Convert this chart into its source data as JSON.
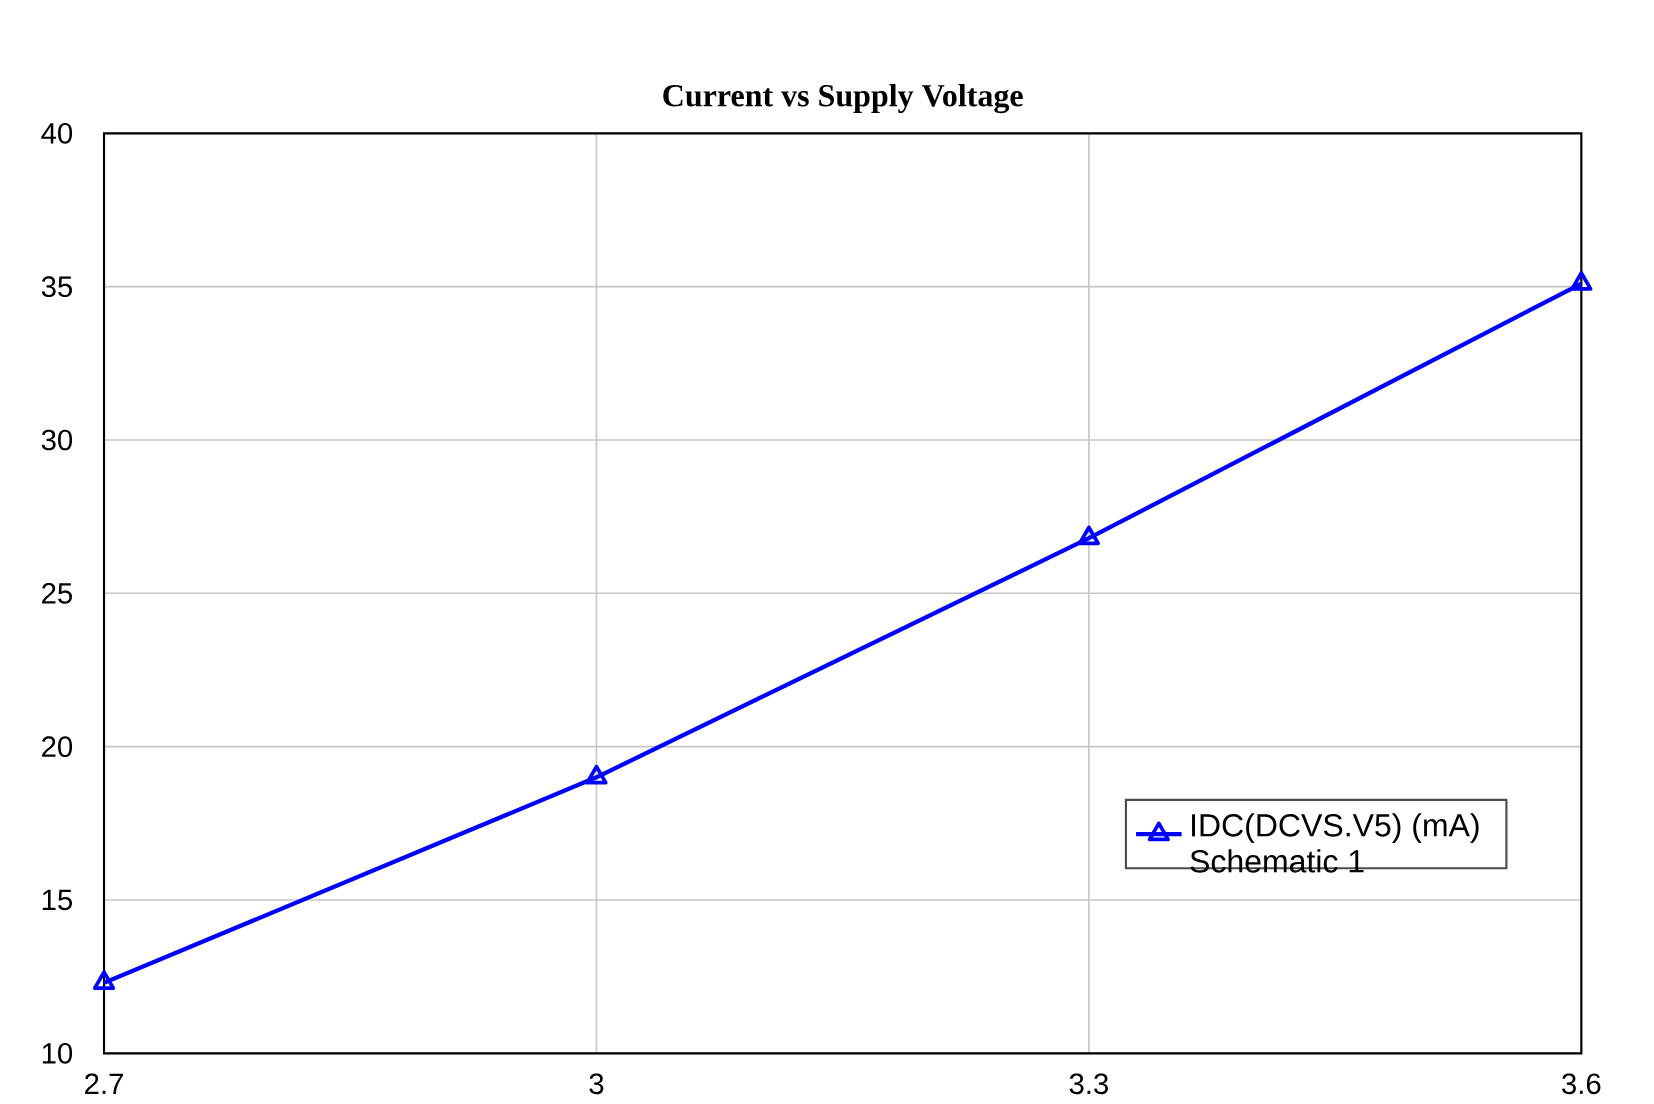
{
  "chart_data": {
    "type": "line",
    "title": "Current vs Supply Voltage",
    "x": [
      2.7,
      3,
      3.3,
      3.6
    ],
    "series": [
      {
        "name": "IDC(DCVS.V5) (mA) Schematic 1",
        "color": "#0000ff",
        "values": [
          12.3,
          19.0,
          26.8,
          35.1
        ]
      }
    ],
    "xlim": [
      2.7,
      3.6
    ],
    "xticks": [
      2.7,
      3,
      3.3,
      3.6
    ],
    "ylim": [
      10,
      40
    ],
    "yticks": [
      10,
      15,
      20,
      25,
      30,
      35,
      40
    ],
    "grid": true,
    "legend": "bottom right",
    "marker": "triangle",
    "line_style": "solid"
  }
}
